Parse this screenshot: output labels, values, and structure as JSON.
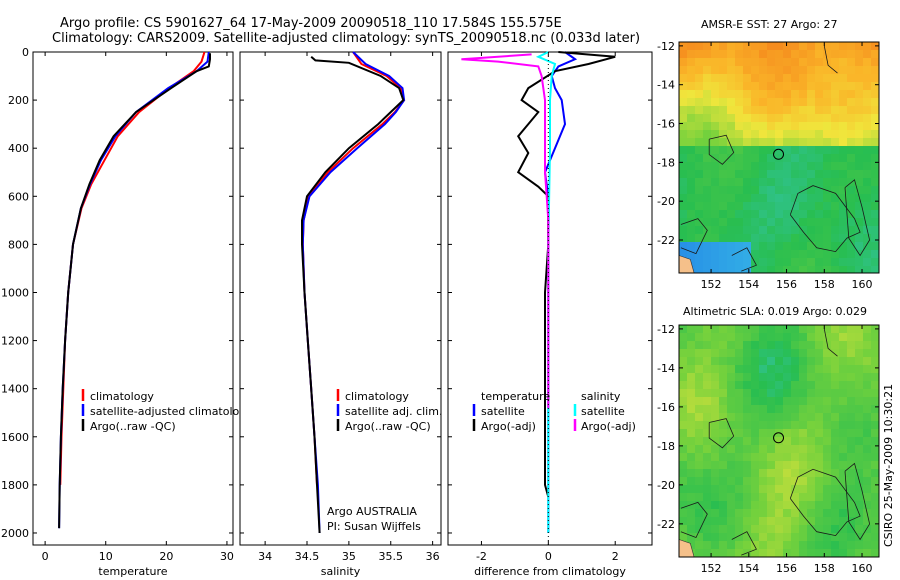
{
  "header": {
    "line1": "Argo profile: CS 5901627_64 17-May-2009 20090518_110 17.584S 155.575E",
    "line2": "Climatology: CARS2009. Satellite-adjusted climatology: synTS_20090518.nc (0.033d later)"
  },
  "map_titles": {
    "sst": "AMSR-E SST: 27 Argo: 27",
    "sla": "Altimetric SLA: 0.019 Argo: 0.029"
  },
  "side_label": "CSIRO 25-May-2009 10:30:21",
  "colors": {
    "red": "#ff0000",
    "blue": "#0000ff",
    "black": "#000000",
    "cyan": "#00ffff",
    "magenta": "#ff00ff"
  },
  "chart_data": [
    {
      "type": "line",
      "name": "temperature",
      "xlabel": "temperature",
      "xlim": [
        -2,
        31
      ],
      "xticks": [
        0,
        10,
        20,
        30
      ],
      "ylim": [
        0,
        2050
      ],
      "yticks": [
        0,
        200,
        400,
        600,
        800,
        1000,
        1200,
        1400,
        1600,
        1800,
        2000
      ],
      "legend": [
        "climatology",
        "satellite-adjusted climatology",
        "Argo(..raw -QC)"
      ],
      "series": [
        {
          "name": "climatology",
          "color": "red",
          "depth": [
            0,
            40,
            80,
            150,
            250,
            350,
            450,
            550,
            650,
            800,
            1000,
            1200,
            1400,
            1600,
            1800
          ],
          "values": [
            26.3,
            25.8,
            24.5,
            20.5,
            15.5,
            12.0,
            9.8,
            7.6,
            6.0,
            4.6,
            3.8,
            3.3,
            3.0,
            2.7,
            2.5
          ]
        },
        {
          "name": "satellite-adjusted climatology",
          "color": "blue",
          "depth": [
            0,
            40,
            80,
            150,
            250,
            350,
            450,
            550,
            650,
            800,
            1000,
            1200,
            1400,
            1600,
            1800,
            1980
          ],
          "values": [
            27.0,
            26.8,
            25.0,
            20.3,
            15.0,
            11.6,
            9.2,
            7.4,
            5.9,
            4.6,
            3.8,
            3.3,
            2.9,
            2.6,
            2.4,
            2.3
          ]
        },
        {
          "name": "Argo(..raw -QC)",
          "color": "black",
          "depth": [
            5,
            30,
            60,
            80,
            150,
            250,
            350,
            450,
            550,
            650,
            800,
            1000,
            1200,
            1400,
            1600,
            1800,
            1980
          ],
          "values": [
            27.2,
            27.2,
            27.0,
            25.0,
            20.8,
            15.0,
            11.3,
            9.0,
            7.3,
            5.9,
            4.6,
            3.8,
            3.3,
            2.9,
            2.6,
            2.4,
            2.3
          ]
        }
      ]
    },
    {
      "type": "line",
      "name": "salinity",
      "xlabel": "salinity",
      "xlim": [
        33.7,
        36.1
      ],
      "xticks": [
        34,
        34.5,
        35,
        35.5,
        36
      ],
      "ylim": [
        0,
        2050
      ],
      "legend": [
        "climatology",
        "satellite adj. clim.",
        "Argo(..raw -QC)"
      ],
      "annotation": [
        "Argo AUSTRALIA",
        "PI: Susan Wijffels"
      ],
      "series": [
        {
          "name": "climatology",
          "color": "red",
          "depth": [
            0,
            50,
            100,
            150,
            200,
            250,
            300,
            400,
            500,
            600,
            700,
            800,
            1000,
            1200,
            1400,
            1600,
            1800
          ],
          "values": [
            35.05,
            35.15,
            35.45,
            35.62,
            35.66,
            35.55,
            35.4,
            35.05,
            34.75,
            34.52,
            34.46,
            34.45,
            34.47,
            34.51,
            34.55,
            34.59,
            34.62
          ]
        },
        {
          "name": "satellite adj. clim.",
          "color": "blue",
          "depth": [
            0,
            50,
            100,
            150,
            200,
            250,
            300,
            400,
            500,
            600,
            700,
            800,
            1000,
            1200,
            1400,
            1600,
            1800,
            2000
          ],
          "values": [
            35.05,
            35.2,
            35.48,
            35.64,
            35.66,
            35.56,
            35.43,
            35.1,
            34.78,
            34.53,
            34.46,
            34.45,
            34.47,
            34.51,
            34.55,
            34.59,
            34.63,
            34.65
          ]
        },
        {
          "name": "Argo(..raw -QC)",
          "color": "black",
          "depth": [
            20,
            35,
            45,
            100,
            150,
            200,
            250,
            300,
            400,
            500,
            600,
            700,
            800,
            1000,
            1200,
            1400,
            1600,
            1800,
            2000
          ],
          "values": [
            34.55,
            34.6,
            35.0,
            35.38,
            35.6,
            35.65,
            35.5,
            35.35,
            35.0,
            34.72,
            34.5,
            34.44,
            34.44,
            34.47,
            34.51,
            34.55,
            34.59,
            34.62,
            34.65
          ]
        }
      ]
    },
    {
      "type": "line",
      "name": "difference",
      "xlabel": "difference from climatology",
      "xlim": [
        -3,
        3.1
      ],
      "xticks": [
        -2,
        0,
        2
      ],
      "ylim": [
        0,
        2050
      ],
      "legend_temperature": [
        "temperature",
        "satellite",
        "Argo(-adj)"
      ],
      "legend_salinity": [
        "salinity",
        "satellite",
        "Argo(-adj)"
      ],
      "series": [
        {
          "name": "temperature satellite",
          "color": "blue",
          "depth": [
            0,
            30,
            60,
            100,
            150,
            200,
            300,
            400,
            500,
            600,
            800,
            1000,
            1400,
            1800,
            2000
          ],
          "values": [
            0.5,
            0.8,
            0.3,
            0.1,
            0.2,
            0.4,
            0.5,
            0.2,
            -0.1,
            0.0,
            0.0,
            0.0,
            0.0,
            0.0,
            0.0
          ]
        },
        {
          "name": "temperature Argo(-adj)",
          "color": "black",
          "depth": [
            0,
            20,
            50,
            80,
            150,
            200,
            250,
            300,
            350,
            420,
            500,
            560,
            600,
            800,
            1000,
            1400,
            1800,
            1850
          ],
          "values": [
            0.3,
            2.0,
            1.2,
            0.2,
            -0.6,
            -0.8,
            -0.3,
            -0.6,
            -0.9,
            -0.6,
            -0.9,
            -0.3,
            0.0,
            0.0,
            -0.1,
            -0.1,
            -0.1,
            0.0
          ]
        },
        {
          "name": "salinity satellite",
          "color": "cyan",
          "depth": [
            0,
            20,
            50,
            100,
            200,
            400,
            800,
            1200,
            1600,
            2000
          ],
          "values": [
            0.0,
            -0.3,
            0.2,
            0.1,
            0.05,
            0.05,
            0.0,
            0.0,
            0.0,
            0.0
          ]
        },
        {
          "name": "salinity Argo(-adj)",
          "color": "magenta",
          "depth": [
            10,
            30,
            40,
            60,
            100,
            200,
            300,
            500,
            600,
            700,
            1400,
            1480
          ],
          "values": [
            -0.5,
            -2.6,
            -1.5,
            -0.3,
            -0.2,
            -0.1,
            -0.1,
            -0.1,
            -0.05,
            0.0,
            0.0,
            0.0
          ]
        }
      ]
    },
    {
      "type": "heatmap",
      "name": "sst-map",
      "title": "AMSR-E SST: 27 Argo: 27",
      "xlim": [
        150.3,
        160.9
      ],
      "ylim": [
        -23.7,
        -11.8
      ],
      "xticks": [
        152,
        154,
        156,
        158,
        160
      ],
      "yticks": [
        -12,
        -14,
        -16,
        -18,
        -20,
        -22
      ],
      "marker": {
        "lon": 155.575,
        "lat": -17.584
      }
    },
    {
      "type": "heatmap",
      "name": "sla-map",
      "title": "Altimetric SLA: 0.019 Argo: 0.029",
      "xlim": [
        150.3,
        160.9
      ],
      "ylim": [
        -23.7,
        -11.8
      ],
      "xticks": [
        152,
        154,
        156,
        158,
        160
      ],
      "yticks": [
        -12,
        -14,
        -16,
        -18,
        -20,
        -22
      ],
      "marker": {
        "lon": 155.575,
        "lat": -17.584
      }
    }
  ]
}
